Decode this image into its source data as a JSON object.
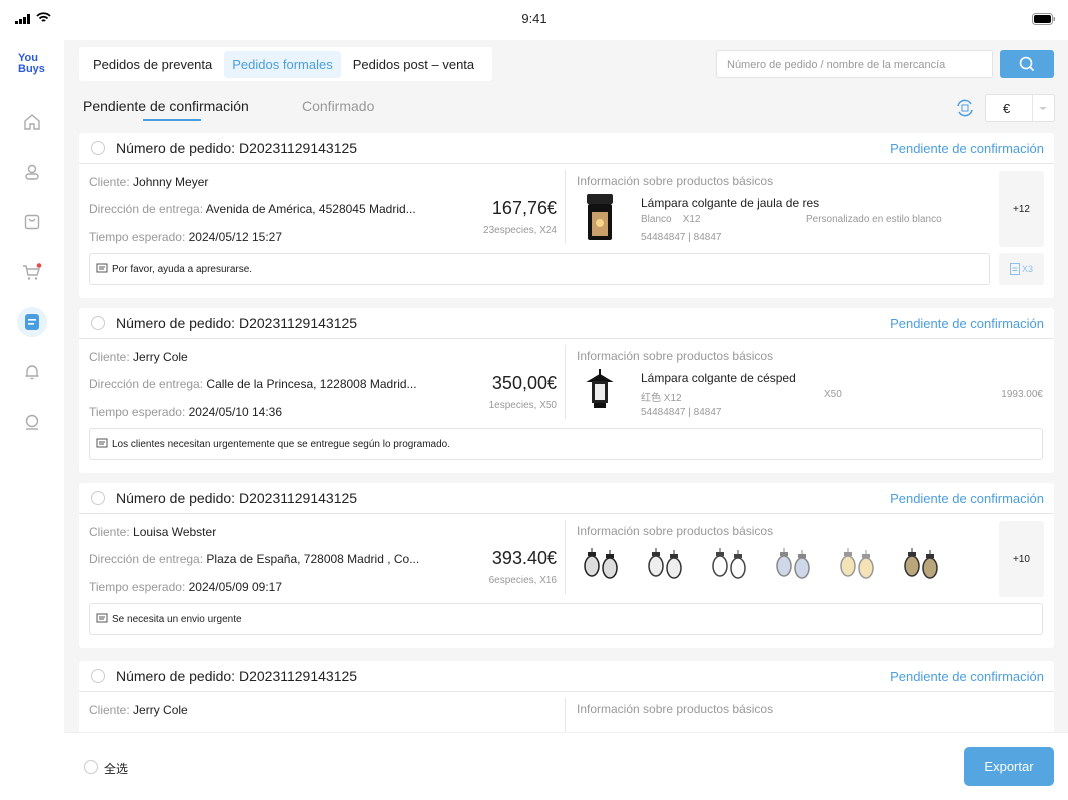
{
  "status_bar": {
    "time": "9:41"
  },
  "sidebar": {
    "logo": [
      "You",
      "Buys"
    ],
    "items": [
      "home",
      "user",
      "bag",
      "cart",
      "orders",
      "notifications",
      "profile"
    ],
    "active": "orders"
  },
  "top_tabs": [
    {
      "label": "Pedidos de preventa"
    },
    {
      "label": "Pedidos formales",
      "active": true
    },
    {
      "label": "Pedidos post – venta"
    }
  ],
  "search": {
    "placeholder": "Número de pedido / nombre de la mercancía"
  },
  "sub_tabs": [
    {
      "label": "Pendiente de confirmación",
      "active": true
    },
    {
      "label": "Confirmado"
    }
  ],
  "currency": {
    "selected": "€"
  },
  "labels": {
    "order_no": "Número de pedido: ",
    "client": "Cliente: ",
    "address": "Dirección de entrega: ",
    "time": "Tiempo esperado: ",
    "product_info": "Información sobre productos básicos"
  },
  "orders": [
    {
      "number": "D20231129143125",
      "status": "Pendiente de confirmación",
      "client": "Johnny Meyer",
      "address": "Avenida de América, 4528045 Madrid...",
      "time": "2024/05/12 15:27",
      "price": "167,76€",
      "count": "23especies,  X24",
      "product": {
        "name": "Lámpara colgante de jaula de res",
        "color": "Blanco",
        "qty": "X12",
        "extra": "Personalizado en estilo blanco",
        "codes": "54484847 | 84847"
      },
      "more": "+12",
      "note": "Por favor, ayuda a apresurarse.",
      "docs": "X3"
    },
    {
      "number": "D20231129143125",
      "status": "Pendiente de confirmación",
      "client": "Jerry Cole",
      "address": "Calle de la Princesa, 1228008 Madrid...",
      "time": "2024/05/10 14:36",
      "price": "350,00€",
      "count": "1especies,  X50",
      "product": {
        "name": "Lámpara colgante de césped",
        "color": "红色",
        "qty": "X12",
        "extra": "X50",
        "price": "1993.00€",
        "codes": "54484847 | 84847"
      },
      "note": "Los clientes necesitan urgentemente que se entregue según lo programado."
    },
    {
      "number": "D20231129143125",
      "status": "Pendiente de confirmación",
      "client": "Louisa Webster",
      "address": "Plaza de España, 728008 Madrid , Co...",
      "time": "2024/05/09 09:17",
      "price": "393.40€",
      "count": "6especies,  X16",
      "thumbs": 6,
      "more": "+10",
      "note": "Se necesita un envio urgente"
    },
    {
      "number": "D20231129143125",
      "status": "Pendiente de confirmación",
      "client": "Jerry Cole"
    }
  ],
  "footer": {
    "select_all": "全选",
    "export": "Exportar"
  }
}
